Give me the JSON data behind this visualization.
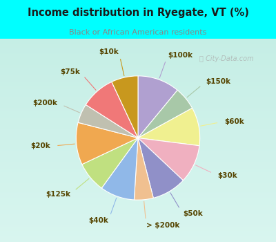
{
  "title": "Income distribution in Ryegate, VT (%)",
  "subtitle": "Black or African American residents",
  "background_color": "#00ffff",
  "labels": [
    "$100k",
    "$150k",
    "$60k",
    "$30k",
    "$50k",
    "> $200k",
    "$40k",
    "$125k",
    "$20k",
    "$200k",
    "$75k",
    "$10k"
  ],
  "values": [
    11,
    6,
    10,
    10,
    9,
    5,
    9,
    8,
    11,
    5,
    9,
    7
  ],
  "colors": [
    "#b0a0d0",
    "#a8c8a8",
    "#f0f090",
    "#f0b0c0",
    "#9090c8",
    "#f0c090",
    "#90b8e8",
    "#c0e080",
    "#f0a850",
    "#c0c0b0",
    "#f07878",
    "#c8981e"
  ],
  "label_color": "#554400",
  "title_color": "#1a1a1a",
  "subtitle_color": "#888888",
  "watermark": "City-Data.com"
}
